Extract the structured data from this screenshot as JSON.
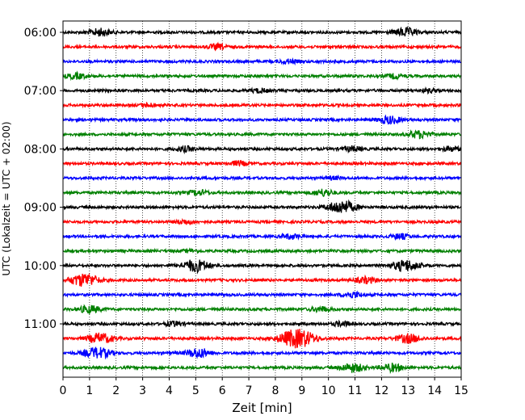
{
  "chart_data": {
    "type": "line",
    "title": "",
    "xlabel": "Zeit  [min]",
    "ylabel": "UTC (Lokalzeit = UTC + 02:00)",
    "xlim": [
      0,
      15
    ],
    "x_ticks": [
      0,
      1,
      2,
      3,
      4,
      5,
      6,
      7,
      8,
      9,
      10,
      11,
      12,
      13,
      14,
      15
    ],
    "x_tick_labels": [
      "0",
      "1",
      "2",
      "3",
      "4",
      "5",
      "6",
      "7",
      "8",
      "9",
      "10",
      "11",
      "12",
      "13",
      "14",
      "15"
    ],
    "y_tick_labels": [
      "06:00",
      "07:00",
      "08:00",
      "09:00",
      "10:00",
      "11:00"
    ],
    "rows_per_hour": 4,
    "row_minutes": 15,
    "row_colors": [
      "#000000",
      "#ff0000",
      "#0000ff",
      "#008000"
    ],
    "grid": "vertical-dotted",
    "rows": [
      {
        "start": "06:00",
        "bursts": [
          {
            "x": 1.4,
            "amp": 1.3
          },
          {
            "x": 12.9,
            "amp": 1.5
          }
        ]
      },
      {
        "start": "06:15",
        "bursts": [
          {
            "x": 5.8,
            "amp": 0.9
          }
        ]
      },
      {
        "start": "06:30",
        "bursts": [
          {
            "x": 8.5,
            "amp": 0.7
          }
        ]
      },
      {
        "start": "06:45",
        "bursts": [
          {
            "x": 0.5,
            "amp": 1.0
          },
          {
            "x": 12.5,
            "amp": 0.8
          }
        ]
      },
      {
        "start": "07:00",
        "bursts": [
          {
            "x": 7.4,
            "amp": 0.7
          },
          {
            "x": 13.8,
            "amp": 0.6
          }
        ]
      },
      {
        "start": "07:15",
        "bursts": [
          {
            "x": 3.2,
            "amp": 0.6
          }
        ]
      },
      {
        "start": "07:30",
        "bursts": [
          {
            "x": 12.3,
            "amp": 1.4
          }
        ]
      },
      {
        "start": "07:45",
        "bursts": [
          {
            "x": 13.4,
            "amp": 1.3
          }
        ]
      },
      {
        "start": "08:00",
        "bursts": [
          {
            "x": 4.6,
            "amp": 0.9
          },
          {
            "x": 10.9,
            "amp": 0.9
          },
          {
            "x": 14.6,
            "amp": 0.8
          }
        ]
      },
      {
        "start": "08:15",
        "bursts": [
          {
            "x": 6.6,
            "amp": 0.8
          }
        ]
      },
      {
        "start": "08:30",
        "bursts": [
          {
            "x": 10.2,
            "amp": 0.5
          }
        ]
      },
      {
        "start": "08:45",
        "bursts": [
          {
            "x": 5.1,
            "amp": 0.9
          },
          {
            "x": 9.8,
            "amp": 1.2
          }
        ]
      },
      {
        "start": "09:00",
        "bursts": [
          {
            "x": 10.5,
            "amp": 2.4
          }
        ]
      },
      {
        "start": "09:15",
        "bursts": [
          {
            "x": 4.6,
            "amp": 0.8
          }
        ]
      },
      {
        "start": "09:30",
        "bursts": [
          {
            "x": 8.6,
            "amp": 0.8
          },
          {
            "x": 12.7,
            "amp": 0.9
          }
        ]
      },
      {
        "start": "09:45",
        "bursts": [
          {
            "x": 4.8,
            "amp": 0.4
          }
        ]
      },
      {
        "start": "10:00",
        "bursts": [
          {
            "x": 5.0,
            "amp": 2.2
          },
          {
            "x": 12.9,
            "amp": 2.0
          }
        ]
      },
      {
        "start": "10:15",
        "bursts": [
          {
            "x": 0.8,
            "amp": 2.4
          },
          {
            "x": 11.4,
            "amp": 1.1
          }
        ]
      },
      {
        "start": "10:30",
        "bursts": [
          {
            "x": 10.9,
            "amp": 1.0
          }
        ]
      },
      {
        "start": "10:45",
        "bursts": [
          {
            "x": 1.0,
            "amp": 1.3
          },
          {
            "x": 9.7,
            "amp": 0.9
          }
        ]
      },
      {
        "start": "11:00",
        "bursts": [
          {
            "x": 4.2,
            "amp": 0.8
          },
          {
            "x": 10.5,
            "amp": 0.8
          }
        ]
      },
      {
        "start": "11:15",
        "bursts": [
          {
            "x": 1.4,
            "amp": 1.9
          },
          {
            "x": 8.6,
            "amp": 2.4
          },
          {
            "x": 9.1,
            "amp": 2.0
          },
          {
            "x": 13.0,
            "amp": 1.6
          }
        ]
      },
      {
        "start": "11:30",
        "bursts": [
          {
            "x": 1.3,
            "amp": 2.0
          },
          {
            "x": 5.1,
            "amp": 1.7
          }
        ]
      },
      {
        "start": "11:45",
        "bursts": [
          {
            "x": 10.9,
            "amp": 1.6
          },
          {
            "x": 12.4,
            "amp": 1.4
          }
        ]
      }
    ]
  }
}
